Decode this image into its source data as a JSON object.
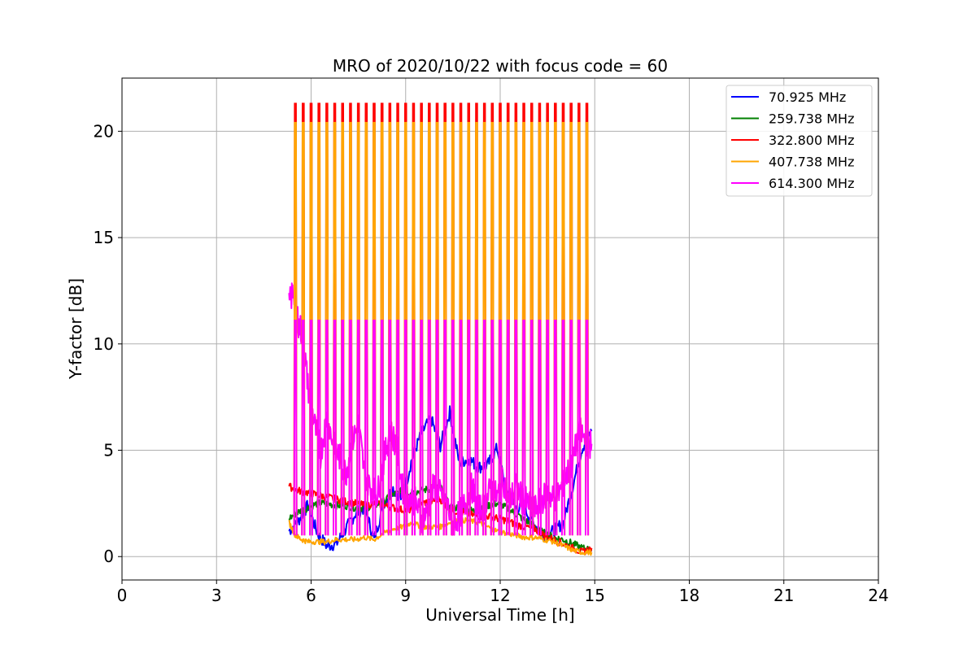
{
  "chart_data": {
    "type": "line",
    "title": "MRO of 2020/10/22 with focus code = 60",
    "xlabel": "Universal Time [h]",
    "ylabel": "Y-factor [dB]",
    "xlim": [
      0,
      24
    ],
    "ylim": [
      -1.1,
      22.5
    ],
    "xticks": [
      0,
      3,
      6,
      9,
      12,
      15,
      18,
      21,
      24
    ],
    "yticks": [
      0,
      5,
      10,
      15,
      20
    ],
    "grid": true,
    "legend_position": "top-right",
    "series": [
      {
        "name": " 70.925 MHz",
        "color": "#0000ff",
        "x": [
          5.3,
          5.6,
          5.9,
          6.2,
          6.5,
          6.8,
          7.1,
          7.4,
          7.7,
          8.0,
          8.3,
          8.6,
          8.9,
          9.2,
          9.5,
          9.8,
          10.1,
          10.4,
          10.7,
          11.0,
          11.3,
          11.6,
          11.9,
          12.2,
          12.5,
          12.8,
          13.1,
          13.4,
          13.7,
          14.0,
          14.3,
          14.6,
          14.9
        ],
        "y": [
          1.2,
          1.7,
          2.4,
          1.1,
          0.5,
          0.6,
          1.3,
          2.0,
          2.3,
          0.8,
          2.5,
          3.2,
          2.7,
          4.6,
          5.8,
          6.5,
          5.2,
          6.8,
          4.4,
          4.6,
          4.2,
          4.3,
          5.1,
          3.1,
          2.3,
          2.2,
          1.5,
          1.0,
          1.2,
          1.6,
          3.3,
          5.1,
          5.9
        ]
      },
      {
        "name": " 259.738 MHz",
        "color": "#008000",
        "x": [
          5.3,
          5.6,
          5.9,
          6.2,
          6.5,
          6.8,
          7.1,
          7.4,
          7.7,
          8.0,
          8.3,
          8.6,
          8.9,
          9.2,
          9.5,
          9.8,
          10.1,
          10.4,
          10.7,
          11.0,
          11.3,
          11.6,
          11.9,
          12.2,
          12.5,
          12.8,
          13.1,
          13.4,
          13.7,
          14.0,
          14.3,
          14.6,
          14.9
        ],
        "y": [
          1.8,
          2.1,
          2.3,
          2.5,
          2.5,
          2.4,
          2.4,
          2.3,
          2.3,
          2.4,
          2.6,
          2.9,
          3.1,
          3.0,
          3.1,
          3.2,
          3.3,
          2.3,
          2.3,
          2.2,
          2.1,
          2.4,
          2.5,
          2.3,
          2.0,
          1.7,
          1.4,
          1.1,
          0.9,
          0.8,
          0.6,
          0.4,
          0.3
        ]
      },
      {
        "name": " 322.800 MHz",
        "color": "#ff0000",
        "x": [
          5.3,
          5.6,
          5.9,
          6.2,
          6.5,
          6.8,
          7.1,
          7.4,
          7.7,
          8.0,
          8.3,
          8.6,
          8.9,
          9.2,
          9.5,
          9.8,
          10.1,
          10.4,
          10.7,
          11.0,
          11.3,
          11.6,
          11.9,
          12.2,
          12.5,
          12.8,
          13.1,
          13.4,
          13.7,
          14.0,
          14.3,
          14.6,
          14.9
        ],
        "y": [
          3.3,
          3.1,
          3.0,
          2.9,
          2.8,
          2.7,
          2.6,
          2.5,
          2.4,
          2.5,
          2.4,
          2.3,
          2.2,
          2.2,
          2.5,
          2.6,
          2.7,
          2.2,
          2.1,
          2.0,
          1.9,
          1.9,
          1.8,
          1.7,
          1.5,
          1.4,
          1.3,
          1.0,
          0.8,
          0.6,
          0.4,
          0.2,
          0.4
        ]
      },
      {
        "name": " 407.738 MHz",
        "color": "#ffa500",
        "x": [
          5.3,
          5.5,
          5.7,
          5.9,
          6.2,
          6.5,
          6.8,
          7.1,
          7.4,
          7.7,
          8.0,
          8.3,
          8.6,
          8.9,
          9.2,
          9.5,
          9.8,
          10.1,
          10.4,
          10.7,
          11.0,
          11.3,
          11.6,
          11.9,
          12.2,
          12.5,
          12.8,
          13.1,
          13.4,
          13.7,
          14.0,
          14.3,
          14.6,
          14.9
        ],
        "y": [
          1.6,
          1.0,
          0.8,
          0.7,
          0.7,
          0.7,
          0.8,
          0.8,
          0.8,
          0.9,
          0.8,
          1.1,
          1.3,
          1.4,
          1.6,
          1.4,
          1.4,
          1.4,
          1.6,
          1.7,
          1.7,
          1.6,
          1.4,
          1.2,
          1.1,
          1.0,
          0.9,
          0.9,
          0.8,
          0.7,
          0.5,
          0.3,
          0.2,
          0.2
        ]
      },
      {
        "name": " 614.300 MHz",
        "color": "#ff00ff",
        "x": [
          5.3,
          5.45,
          5.6,
          5.75,
          5.9,
          6.1,
          6.3,
          6.5,
          6.7,
          6.9,
          7.1,
          7.3,
          7.5,
          7.7,
          7.9,
          8.1,
          8.3,
          8.5,
          8.7,
          8.9,
          9.1,
          9.3,
          9.5,
          9.7,
          9.9,
          10.1,
          10.3,
          10.5,
          10.7,
          10.9,
          11.1,
          11.3,
          11.5,
          11.7,
          11.9,
          12.1,
          12.3,
          12.5,
          12.7,
          12.9,
          13.1,
          13.3,
          13.5,
          13.7,
          13.9,
          14.1,
          14.3,
          14.5,
          14.7,
          14.9
        ],
        "y": [
          11.8,
          12.6,
          11.0,
          10.3,
          8.0,
          6.3,
          4.8,
          6.6,
          5.3,
          4.7,
          3.9,
          5.4,
          6.2,
          3.8,
          3.2,
          2.9,
          4.5,
          5.9,
          5.3,
          3.2,
          2.8,
          2.6,
          1.8,
          2.1,
          3.4,
          2.9,
          2.5,
          1.5,
          2.0,
          2.5,
          3.3,
          2.2,
          2.4,
          3.2,
          2.8,
          3.6,
          2.6,
          3.3,
          2.7,
          2.5,
          2.2,
          2.6,
          3.0,
          2.7,
          3.1,
          3.8,
          4.4,
          6.0,
          5.4,
          5.3
        ]
      }
    ],
    "pulses": {
      "description_free": true,
      "x_start": 5.48,
      "x_step": 0.25,
      "x_end": 14.85,
      "peaks": [
        {
          "series": 2,
          "level": 21.3
        },
        {
          "series": 3,
          "level": 20.4
        },
        {
          "series": 4,
          "level": 11.1
        }
      ]
    }
  }
}
